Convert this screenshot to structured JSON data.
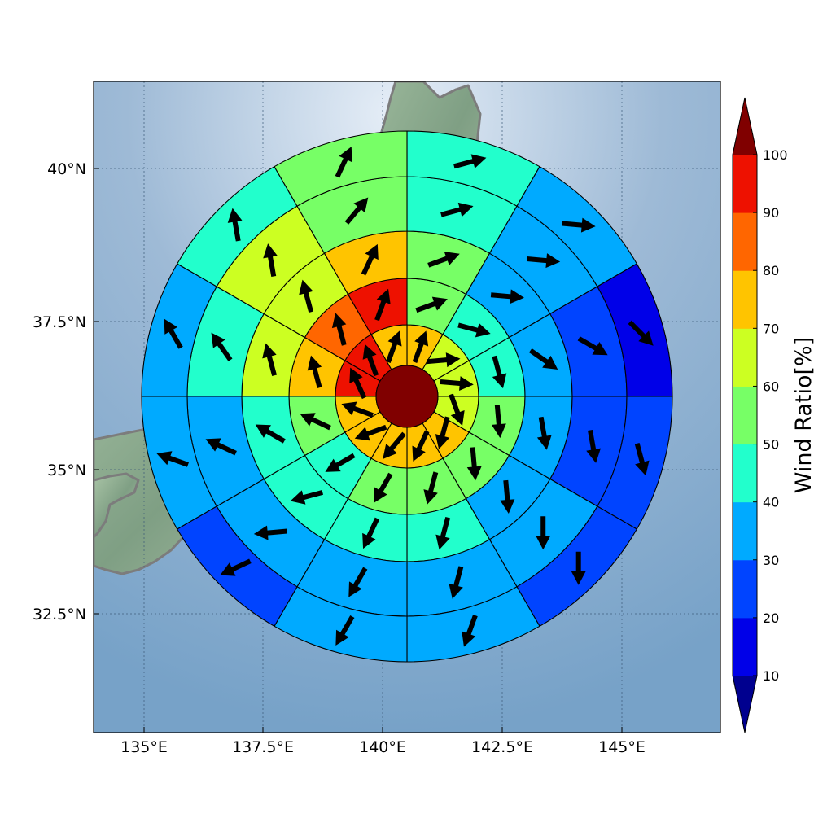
{
  "map": {
    "x_ticks": [
      "135°E",
      "137.5°E",
      "140°E",
      "142.5°E",
      "145°E"
    ],
    "y_ticks": [
      "40°N",
      "37.5°N",
      "35°N",
      "32.5°N"
    ],
    "colors": {
      "sea_light": "#d8e6f2",
      "sea_dark": "#7aa4c9",
      "land": "#8fae92",
      "coast": "#777777",
      "grid": "#3c5a78"
    }
  },
  "colorbar": {
    "label": "Wind Ratio[%]",
    "ticks": [
      "10",
      "20",
      "30",
      "40",
      "50",
      "60",
      "70",
      "80",
      "90",
      "100"
    ],
    "colors": [
      "#0000e8",
      "#0044ff",
      "#00aaff",
      "#22ffcc",
      "#77ff66",
      "#ccff22",
      "#ffc400",
      "#ff6600",
      "#ee1100"
    ],
    "under_color": "#00008f",
    "over_color": "#800000"
  },
  "grid_data": {
    "center_ratio": 100,
    "sector_count": 12,
    "sector_start_bearing_deg": 0,
    "rings": [
      {
        "ratios": [
          75,
          60,
          60,
          60,
          70,
          70,
          70,
          75,
          75,
          90,
          90,
          75
        ],
        "winds": [
          20,
          85,
          95,
          160,
          195,
          205,
          220,
          250,
          290,
          335,
          340,
          20
        ]
      },
      {
        "ratios": [
          55,
          45,
          45,
          55,
          55,
          55,
          55,
          45,
          55,
          75,
          85,
          90
        ],
        "winds": [
          70,
          105,
          165,
          175,
          175,
          195,
          210,
          240,
          295,
          345,
          345,
          20
        ]
      },
      {
        "ratios": [
          55,
          35,
          35,
          35,
          35,
          45,
          45,
          45,
          45,
          65,
          65,
          75
        ],
        "winds": [
          70,
          95,
          125,
          170,
          175,
          195,
          205,
          255,
          300,
          345,
          345,
          25
        ]
      },
      {
        "ratios": [
          45,
          35,
          25,
          25,
          35,
          35,
          35,
          35,
          35,
          45,
          65,
          55
        ],
        "winds": [
          75,
          95,
          120,
          170,
          180,
          195,
          210,
          265,
          295,
          325,
          350,
          40
        ]
      },
      {
        "ratios": [
          45,
          35,
          15,
          25,
          25,
          35,
          35,
          25,
          35,
          35,
          45,
          55
        ],
        "winds": [
          75,
          95,
          135,
          165,
          180,
          200,
          210,
          245,
          290,
          330,
          350,
          25
        ]
      }
    ]
  }
}
